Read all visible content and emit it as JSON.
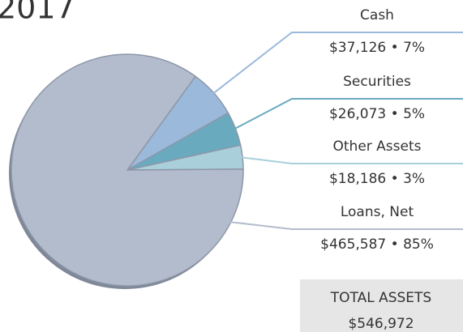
{
  "chart_data": {
    "type": "pie",
    "title": "2017",
    "categories": [
      "Cash",
      "Securities",
      "Other Assets",
      "Loans, Net"
    ],
    "values": [
      37126,
      26073,
      18186,
      465587
    ],
    "value_labels": [
      "$37,126 • 7%",
      "$26,073 • 5%",
      "$18,186 • 3%",
      "$465,587 • 85%"
    ],
    "colors": [
      "#9bb9db",
      "#6aaabf",
      "#a9cfdb",
      "#b3bccc"
    ],
    "total": {
      "label": "TOTAL ASSETS",
      "value": "$546,972"
    }
  }
}
